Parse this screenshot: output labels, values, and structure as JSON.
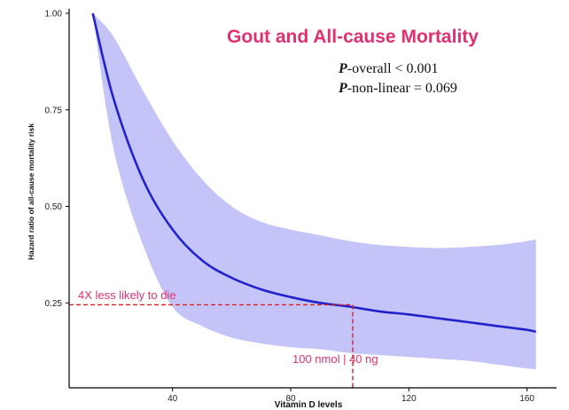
{
  "chart_data": {
    "type": "line",
    "title": "Gout and All-cause Mortality",
    "stats": {
      "overall_prefix": "P",
      "overall_text": "-overall < 0.001",
      "nonlinear_prefix": "P",
      "nonlinear_text": "-non-linear = 0.069"
    },
    "xlabel": "Vitamin D levels",
    "ylabel": "Hazard ratio of all-cause mortality risk",
    "xlim": [
      5,
      170
    ],
    "ylim": [
      0.03,
      1.0
    ],
    "xticks": [
      40,
      80,
      120,
      160
    ],
    "yticks": [
      0.25,
      0.5,
      0.75,
      1.0
    ],
    "ytick_labels": [
      "0.25",
      "0.50",
      "0.75",
      "1.00"
    ],
    "series": [
      {
        "x": [
          13,
          20,
          30,
          40,
          50,
          60,
          70,
          80,
          90,
          100,
          110,
          120,
          130,
          140,
          150,
          160,
          163
        ],
        "y": [
          1.0,
          0.78,
          0.57,
          0.44,
          0.36,
          0.315,
          0.285,
          0.265,
          0.25,
          0.24,
          0.228,
          0.22,
          0.21,
          0.2,
          0.19,
          0.18,
          0.175
        ],
        "lower": [
          1.0,
          0.65,
          0.4,
          0.24,
          0.19,
          0.16,
          0.145,
          0.135,
          0.13,
          0.12,
          0.115,
          0.11,
          0.105,
          0.1,
          0.09,
          0.08,
          0.078
        ],
        "upper": [
          1.0,
          0.94,
          0.8,
          0.67,
          0.57,
          0.5,
          0.46,
          0.44,
          0.425,
          0.41,
          0.4,
          0.395,
          0.392,
          0.395,
          0.4,
          0.41,
          0.415
        ]
      }
    ],
    "reference_lines": {
      "horizontal_y": 0.245,
      "vertical_x": 101,
      "label_left": "4X less likely to die",
      "label_bottom": "100 nmol | 40 ng"
    },
    "colors": {
      "line": "#2222cc",
      "band": "#c4c4f8",
      "title": "#e0306f",
      "annotation": "#e0306f",
      "reference": "#d42020",
      "axis": "#000000"
    },
    "grid": false,
    "legend": "none"
  }
}
